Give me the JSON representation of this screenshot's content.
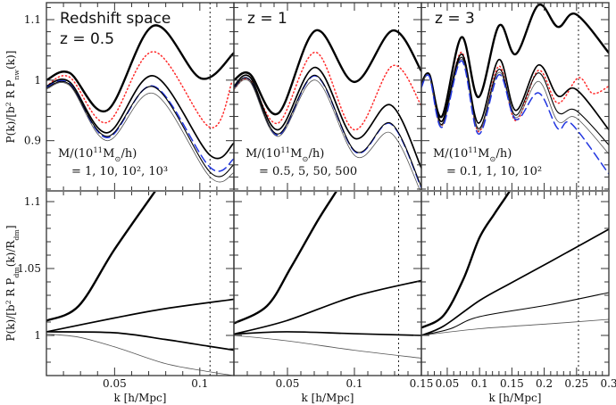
{
  "chart_data": {
    "type": "line",
    "layout": "2 rows x 3 columns, shared y within rows",
    "grid": false,
    "rows": [
      {
        "ylabel_parts": [
          {
            "t": "P(k)/[b"
          },
          {
            "t": "2",
            "sup": true
          },
          {
            "t": " R P"
          },
          {
            "t": "nw",
            "sub": true
          },
          {
            "t": "(k)]"
          }
        ],
        "ylim": [
          0.817,
          1.128
        ],
        "yticks": [
          {
            "v": 0.9,
            "label": "0.9"
          },
          {
            "v": 1.0,
            "label": "1"
          },
          {
            "v": 1.1,
            "label": "1.1"
          }
        ],
        "yminor": 0.02
      },
      {
        "ylabel_parts": [
          {
            "t": "P(k)/[b"
          },
          {
            "t": "2",
            "sup": true
          },
          {
            "t": " R P"
          },
          {
            "t": "dm",
            "sub": true
          },
          {
            "t": "(k)/R"
          },
          {
            "t": "dm",
            "sub": true
          },
          {
            "t": "]"
          }
        ],
        "ylim": [
          0.97,
          1.108
        ],
        "yticks": [
          {
            "v": 1.0,
            "label": "1"
          },
          {
            "v": 1.05,
            "label": "1.05"
          },
          {
            "v": 1.1,
            "label": "1.1"
          }
        ],
        "yminor": 0.01
      }
    ],
    "columns": [
      {
        "xlabel": "k [h/Mpc]",
        "xlim": [
          0.01,
          0.12
        ],
        "xminor": 0.01,
        "xticks": [
          {
            "v": 0.05,
            "label": "0.05"
          },
          {
            "v": 0.1,
            "label": "0.1"
          }
        ],
        "vline_k": 0.106,
        "annotations": {
          "title": "Redshift space",
          "z": "z = 0.5",
          "mass_label_parts": [
            {
              "t": "M/(10"
            },
            {
              "t": "11",
              "sup": true
            },
            {
              "t": "M"
            },
            {
              "t": "⊙",
              "sub": true
            },
            {
              "t": "/h)"
            }
          ],
          "mass_values": "= 1, 10, 10², 10³"
        }
      },
      {
        "xlabel": "k [h/Mpc]",
        "xlim": [
          0.01,
          0.15
        ],
        "xminor": 0.01,
        "xticks": [
          {
            "v": 0.05,
            "label": "0.05"
          },
          {
            "v": 0.1,
            "label": "0.1"
          },
          {
            "v": 0.15,
            "label": "0.15"
          }
        ],
        "vline_k": 0.133,
        "annotations": {
          "title": "",
          "z": "z = 1",
          "mass_label_parts": [
            {
              "t": "M/(10"
            },
            {
              "t": "11",
              "sup": true
            },
            {
              "t": "M"
            },
            {
              "t": "⊙",
              "sub": true
            },
            {
              "t": "/h)"
            }
          ],
          "mass_values": "= 0.5, 5, 50, 500"
        }
      },
      {
        "xlabel": "k [h/Mpc]",
        "xlim": [
          0.01,
          0.3
        ],
        "xminor": 0.01,
        "xticks": [
          {
            "v": 0.05,
            "label": "0.05"
          },
          {
            "v": 0.1,
            "label": "0.1"
          },
          {
            "v": 0.15,
            "label": "0.15"
          },
          {
            "v": 0.2,
            "label": "0.2"
          },
          {
            "v": 0.25,
            "label": "0.25"
          },
          {
            "v": 0.3,
            "label": "0.3"
          }
        ],
        "vline_k": 0.253,
        "annotations": {
          "title": "",
          "z": "z = 3",
          "mass_label_parts": [
            {
              "t": "M/(10"
            },
            {
              "t": "11",
              "sup": true
            },
            {
              "t": "M"
            },
            {
              "t": "⊙",
              "sub": true
            },
            {
              "t": "/h)"
            }
          ],
          "mass_values": "= 0.1, 1, 10, 10²"
        }
      }
    ],
    "styles": {
      "thick": {
        "color": "#000000",
        "width": 2.4
      },
      "medium": {
        "color": "#000000",
        "width": 1.7
      },
      "thin": {
        "color": "#000000",
        "width": 1.1
      },
      "hairline": {
        "color": "#555555",
        "width": 0.8
      },
      "red_dotted": {
        "color": "#ff2a2a",
        "width": 1.5,
        "dash": "1.2 3"
      },
      "blue_dashed": {
        "color": "#2236e0",
        "width": 1.5,
        "dash": "9 5"
      }
    },
    "panels": [
      {
        "row": 0,
        "col": 0,
        "series": [
          {
            "style": "red_dotted",
            "k": [
              0.01,
              0.0236,
              0.0456,
              0.0729,
              0.106,
              0.119
            ],
            "y": [
              0.99,
              1.005,
              0.93,
              1.047,
              0.922,
              0.998
            ]
          },
          {
            "style": "thick",
            "k": [
              0.01,
              0.0236,
              0.0456,
              0.0729,
              0.1006,
              0.12
            ],
            "y": [
              1.0,
              1.012,
              0.95,
              1.09,
              1.003,
              1.045
            ]
          },
          {
            "style": "medium",
            "k": [
              0.01,
              0.0236,
              0.0456,
              0.0729,
              0.106,
              0.12
            ],
            "y": [
              0.99,
              0.997,
              0.913,
              1.007,
              0.876,
              0.896
            ]
          },
          {
            "style": "blue_dashed",
            "k": [
              0.01,
              0.0236,
              0.0456,
              0.0729,
              0.106,
              0.12
            ],
            "y": [
              0.988,
              0.994,
              0.905,
              0.99,
              0.856,
              0.87
            ]
          },
          {
            "style": "thin",
            "k": [
              0.01,
              0.0236,
              0.0456,
              0.0729,
              0.106,
              0.12
            ],
            "y": [
              0.987,
              0.993,
              0.907,
              0.989,
              0.848,
              0.86
            ]
          },
          {
            "style": "hairline",
            "k": [
              0.01,
              0.0236,
              0.0456,
              0.0729,
              0.106,
              0.12
            ],
            "y": [
              0.985,
              0.991,
              0.9,
              0.978,
              0.84,
              0.847
            ]
          }
        ]
      },
      {
        "row": 0,
        "col": 1,
        "series": [
          {
            "style": "red_dotted",
            "k": [
              0.01,
              0.022,
              0.043,
              0.071,
              0.1,
              0.1287,
              0.15
            ],
            "y": [
              0.985,
              1.0,
              0.929,
              1.046,
              0.918,
              1.024,
              0.958
            ]
          },
          {
            "style": "thick",
            "k": [
              0.01,
              0.022,
              0.043,
              0.071,
              0.1,
              0.1287,
              0.15
            ],
            "y": [
              1.0,
              1.01,
              0.945,
              1.082,
              0.997,
              1.082,
              1.015
            ]
          },
          {
            "style": "medium",
            "k": [
              0.01,
              0.022,
              0.043,
              0.071,
              0.1,
              0.127,
              0.15
            ],
            "y": [
              0.99,
              1.005,
              0.918,
              1.021,
              0.904,
              0.959,
              0.855
            ]
          },
          {
            "style": "blue_dashed",
            "k": [
              0.01,
              0.022,
              0.043,
              0.071,
              0.101,
              0.127,
              0.15
            ],
            "y": [
              0.988,
              1.0,
              0.909,
              1.007,
              0.881,
              0.928,
              0.822
            ]
          },
          {
            "style": "thin",
            "k": [
              0.01,
              0.022,
              0.043,
              0.071,
              0.101,
              0.127,
              0.15
            ],
            "y": [
              0.988,
              1.0,
              0.911,
              1.008,
              0.882,
              0.929,
              0.824
            ]
          },
          {
            "style": "hairline",
            "k": [
              0.01,
              0.022,
              0.043,
              0.071,
              0.101,
              0.127,
              0.15
            ],
            "y": [
              0.985,
              0.997,
              0.907,
              1.0,
              0.874,
              0.913,
              0.813
            ]
          }
        ]
      },
      {
        "row": 0,
        "col": 2,
        "series": [
          {
            "style": "red_dotted",
            "k": [
              0.01,
              0.0224,
              0.0418,
              0.0721,
              0.0984,
              0.13,
              0.156,
              0.191,
              0.221,
              0.253,
              0.275,
              0.3
            ],
            "y": [
              0.99,
              1.009,
              0.925,
              1.046,
              0.915,
              1.023,
              0.933,
              1.016,
              0.962,
              1.004,
              0.978,
              0.99
            ]
          },
          {
            "style": "thick",
            "k": [
              0.01,
              0.0224,
              0.0418,
              0.0721,
              0.0984,
              0.13,
              0.156,
              0.191,
              0.221,
              0.249,
              0.3
            ],
            "y": [
              0.994,
              1.009,
              0.94,
              1.071,
              0.972,
              1.09,
              1.043,
              1.124,
              1.088,
              1.109,
              1.045
            ]
          },
          {
            "style": "medium",
            "k": [
              0.01,
              0.0224,
              0.0418,
              0.0721,
              0.0984,
              0.13,
              0.156,
              0.191,
              0.221,
              0.249,
              0.3
            ],
            "y": [
              0.994,
              1.009,
              0.932,
              1.043,
              0.929,
              1.034,
              0.95,
              1.025,
              0.974,
              0.985,
              0.918
            ]
          },
          {
            "style": "thin",
            "k": [
              0.01,
              0.0224,
              0.0418,
              0.0721,
              0.0984,
              0.13,
              0.156,
              0.191,
              0.221,
              0.249,
              0.3
            ],
            "y": [
              0.992,
              1.008,
              0.927,
              1.038,
              0.92,
              1.018,
              0.942,
              1.012,
              0.947,
              0.95,
              0.893
            ]
          },
          {
            "style": "hairline",
            "k": [
              0.01,
              0.0224,
              0.0418,
              0.0721,
              0.0984,
              0.13,
              0.156,
              0.191,
              0.221,
              0.249,
              0.3
            ],
            "y": [
              0.991,
              1.007,
              0.925,
              1.035,
              0.917,
              1.013,
              0.938,
              0.998,
              0.932,
              0.938,
              0.878
            ]
          },
          {
            "style": "blue_dashed",
            "k": [
              0.01,
              0.0224,
              0.0418,
              0.0721,
              0.0984,
              0.13,
              0.156,
              0.191,
              0.221,
              0.242,
              0.3
            ],
            "y": [
              0.988,
              1.006,
              0.922,
              1.032,
              0.911,
              1.009,
              0.935,
              0.979,
              0.92,
              0.928,
              0.845
            ]
          }
        ]
      },
      {
        "row": 1,
        "col": 0,
        "series": [
          {
            "style": "thick",
            "k": [
              0.01,
              0.0289,
              0.0498,
              0.075,
              0.08
            ],
            "y": [
              1.011,
              1.022,
              1.064,
              1.11,
              1.12
            ]
          },
          {
            "style": "medium",
            "k": [
              0.01,
              0.0498,
              0.0797,
              0.12
            ],
            "y": [
              1.0027,
              1.013,
              1.02,
              1.027
            ]
          },
          {
            "style": "medium",
            "k": [
              0.01,
              0.0498,
              0.0797,
              0.1048,
              0.12
            ],
            "y": [
              1.0027,
              1.002,
              0.997,
              0.992,
              0.989
            ]
          },
          {
            "style": "hairline",
            "k": [
              0.01,
              0.0289,
              0.0519,
              0.0797,
              0.1048,
              0.12
            ],
            "y": [
              1.001,
              0.9987,
              0.9907,
              0.979,
              0.973,
              0.97
            ]
          }
        ]
      },
      {
        "row": 1,
        "col": 1,
        "series": [
          {
            "style": "thick",
            "k": [
              0.01,
              0.0347,
              0.0527,
              0.0727,
              0.0873,
              0.092
            ],
            "y": [
              1.009,
              1.022,
              1.051,
              1.086,
              1.109,
              1.118
            ]
          },
          {
            "style": "medium",
            "k": [
              0.01,
              0.0493,
              0.0993,
              0.15
            ],
            "y": [
              1.001,
              1.011,
              1.029,
              1.041
            ]
          },
          {
            "style": "medium",
            "k": [
              0.01,
              0.0493,
              0.0993,
              0.15
            ],
            "y": [
              1.001,
              1.0027,
              1.0013,
              1.0
            ]
          },
          {
            "style": "hairline",
            "k": [
              0.01,
              0.0493,
              0.0993,
              0.15
            ],
            "y": [
              1.0,
              0.996,
              0.989,
              0.983
            ]
          }
        ]
      },
      {
        "row": 1,
        "col": 2,
        "series": [
          {
            "style": "thick",
            "k": [
              0.0114,
              0.0445,
              0.0749,
              0.0998,
              0.1232,
              0.148,
              0.155
            ],
            "y": [
              1.006,
              1.015,
              1.042,
              1.073,
              1.091,
              1.109,
              1.118
            ]
          },
          {
            "style": "medium",
            "k": [
              0.01,
              0.0445,
              0.0998,
              0.148,
              0.2089,
              0.2986
            ],
            "y": [
              1.0,
              1.007,
              1.026,
              1.039,
              1.055,
              1.079
            ]
          },
          {
            "style": "thin",
            "k": [
              0.01,
              0.055,
              0.0998,
              0.2089,
              0.3
            ],
            "y": [
              1.0,
              1.005,
              1.014,
              1.023,
              1.032
            ]
          },
          {
            "style": "hairline",
            "k": [
              0.01,
              0.0998,
              0.2089,
              0.3
            ],
            "y": [
              1.0,
              1.005,
              1.0087,
              1.012
            ]
          }
        ]
      }
    ]
  }
}
